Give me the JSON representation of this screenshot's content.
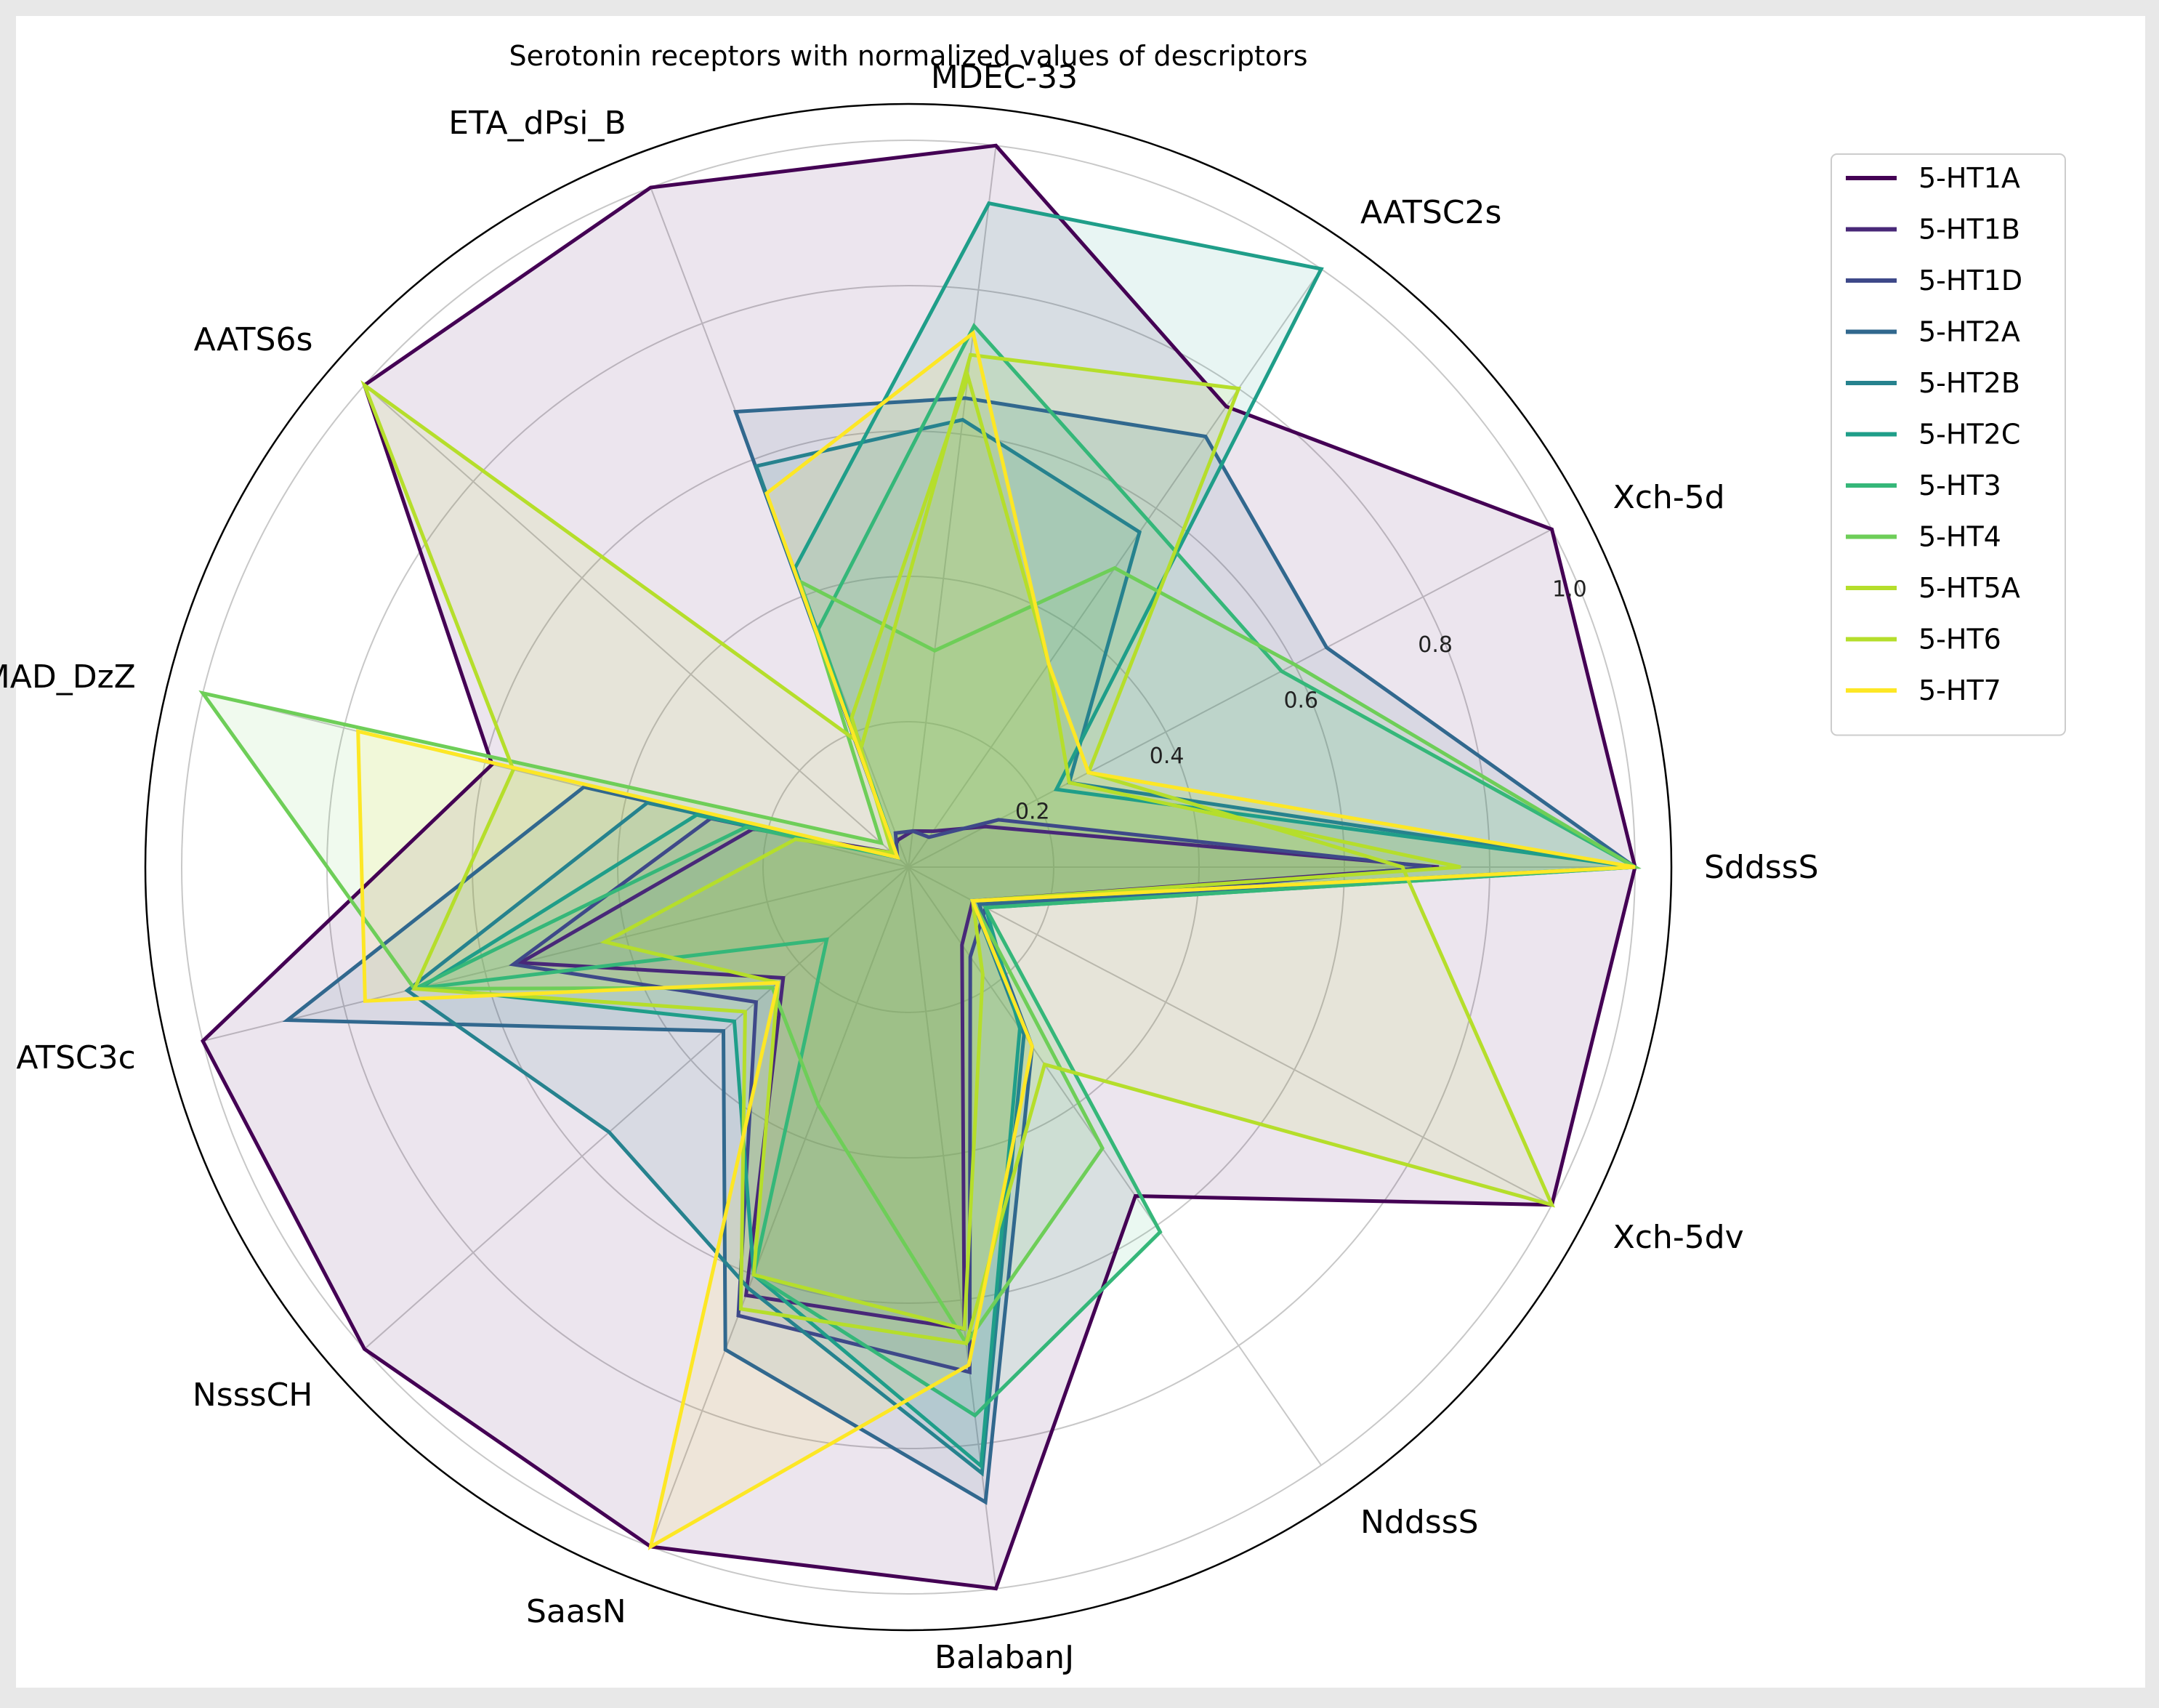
{
  "chart_data": {
    "type": "radar",
    "title": "Serotonin receptors with normalized values of descriptors",
    "axes": [
      "SddssS",
      "Xch-5d",
      "AATSC2s",
      "MDEC-33",
      "ETA_dPsi_B",
      "AATS6s",
      "SpMAD_DzZ",
      "ATSC3c",
      "NsssCH",
      "SaasN",
      "BalabanJ",
      "NddssS",
      "Xch-5dv"
    ],
    "r_ticks": [
      0.2,
      0.4,
      0.6,
      0.8,
      1.0
    ],
    "r_tick_labels": [
      "0.2",
      "0.4",
      "0.6",
      "0.8",
      "1.0"
    ],
    "rlim": [
      0,
      1.0
    ],
    "legend_position": "upper right",
    "series": [
      {
        "name": "5-HT1A",
        "color": "#440154",
        "values": [
          1.0,
          1.0,
          0.77,
          1.0,
          1.0,
          1.0,
          0.59,
          1.0,
          1.0,
          1.0,
          1.0,
          0.55,
          1.0
        ]
      },
      {
        "name": "5-HT1B",
        "color": "#482878",
        "values": [
          0.73,
          0.12,
          0.06,
          0.05,
          0.04,
          0.03,
          0.22,
          0.55,
          0.23,
          0.63,
          0.64,
          0.13,
          0.1
        ]
      },
      {
        "name": "5-HT1D",
        "color": "#3e4989",
        "values": [
          0.72,
          0.14,
          0.05,
          0.05,
          0.05,
          0.02,
          0.28,
          0.56,
          0.28,
          0.66,
          0.7,
          0.15,
          0.12
        ]
      },
      {
        "name": "5-HT2A",
        "color": "#31688e",
        "values": [
          1.0,
          0.65,
          0.72,
          0.65,
          0.67,
          0.02,
          0.46,
          0.88,
          0.34,
          0.71,
          0.88,
          0.3,
          0.11
        ]
      },
      {
        "name": "5-HT2B",
        "color": "#26828e",
        "values": [
          1.0,
          0.25,
          0.56,
          0.62,
          0.59,
          0.02,
          0.37,
          0.71,
          0.55,
          0.62,
          0.84,
          0.28,
          0.1
        ]
      },
      {
        "name": "5-HT2C",
        "color": "#1f9e89",
        "values": [
          1.0,
          0.23,
          1.0,
          0.92,
          0.44,
          0.02,
          0.3,
          0.69,
          0.32,
          0.6,
          0.83,
          0.27,
          0.12
        ]
      },
      {
        "name": "5-HT3",
        "color": "#35b779",
        "values": [
          1.0,
          0.58,
          0.58,
          0.75,
          0.35,
          0.02,
          0.23,
          0.7,
          0.15,
          0.6,
          0.76,
          0.61,
          0.12
        ]
      },
      {
        "name": "5-HT4",
        "color": "#6ece58",
        "values": [
          1.0,
          0.6,
          0.5,
          0.3,
          0.42,
          0.05,
          1.0,
          0.7,
          0.25,
          0.35,
          0.66,
          0.47,
          0.1
        ]
      },
      {
        "name": "5-HT5A",
        "color": "#b5de2b",
        "values": [
          0.76,
          0.25,
          0.34,
          0.68,
          0.22,
          0.03,
          0.16,
          0.43,
          0.24,
          0.6,
          0.64,
          0.18,
          0.1
        ]
      },
      {
        "name": "5-HT6",
        "color": "#b5de2b",
        "values": [
          0.68,
          0.28,
          0.8,
          0.71,
          0.18,
          1.0,
          0.56,
          0.7,
          0.3,
          0.65,
          0.66,
          0.33,
          1.0
        ]
      },
      {
        "name": "5-HT7",
        "color": "#fde725",
        "values": [
          1.0,
          0.28,
          0.34,
          0.74,
          0.55,
          0.02,
          0.78,
          0.77,
          0.24,
          1.0,
          0.69,
          0.3,
          0.1
        ]
      }
    ]
  }
}
